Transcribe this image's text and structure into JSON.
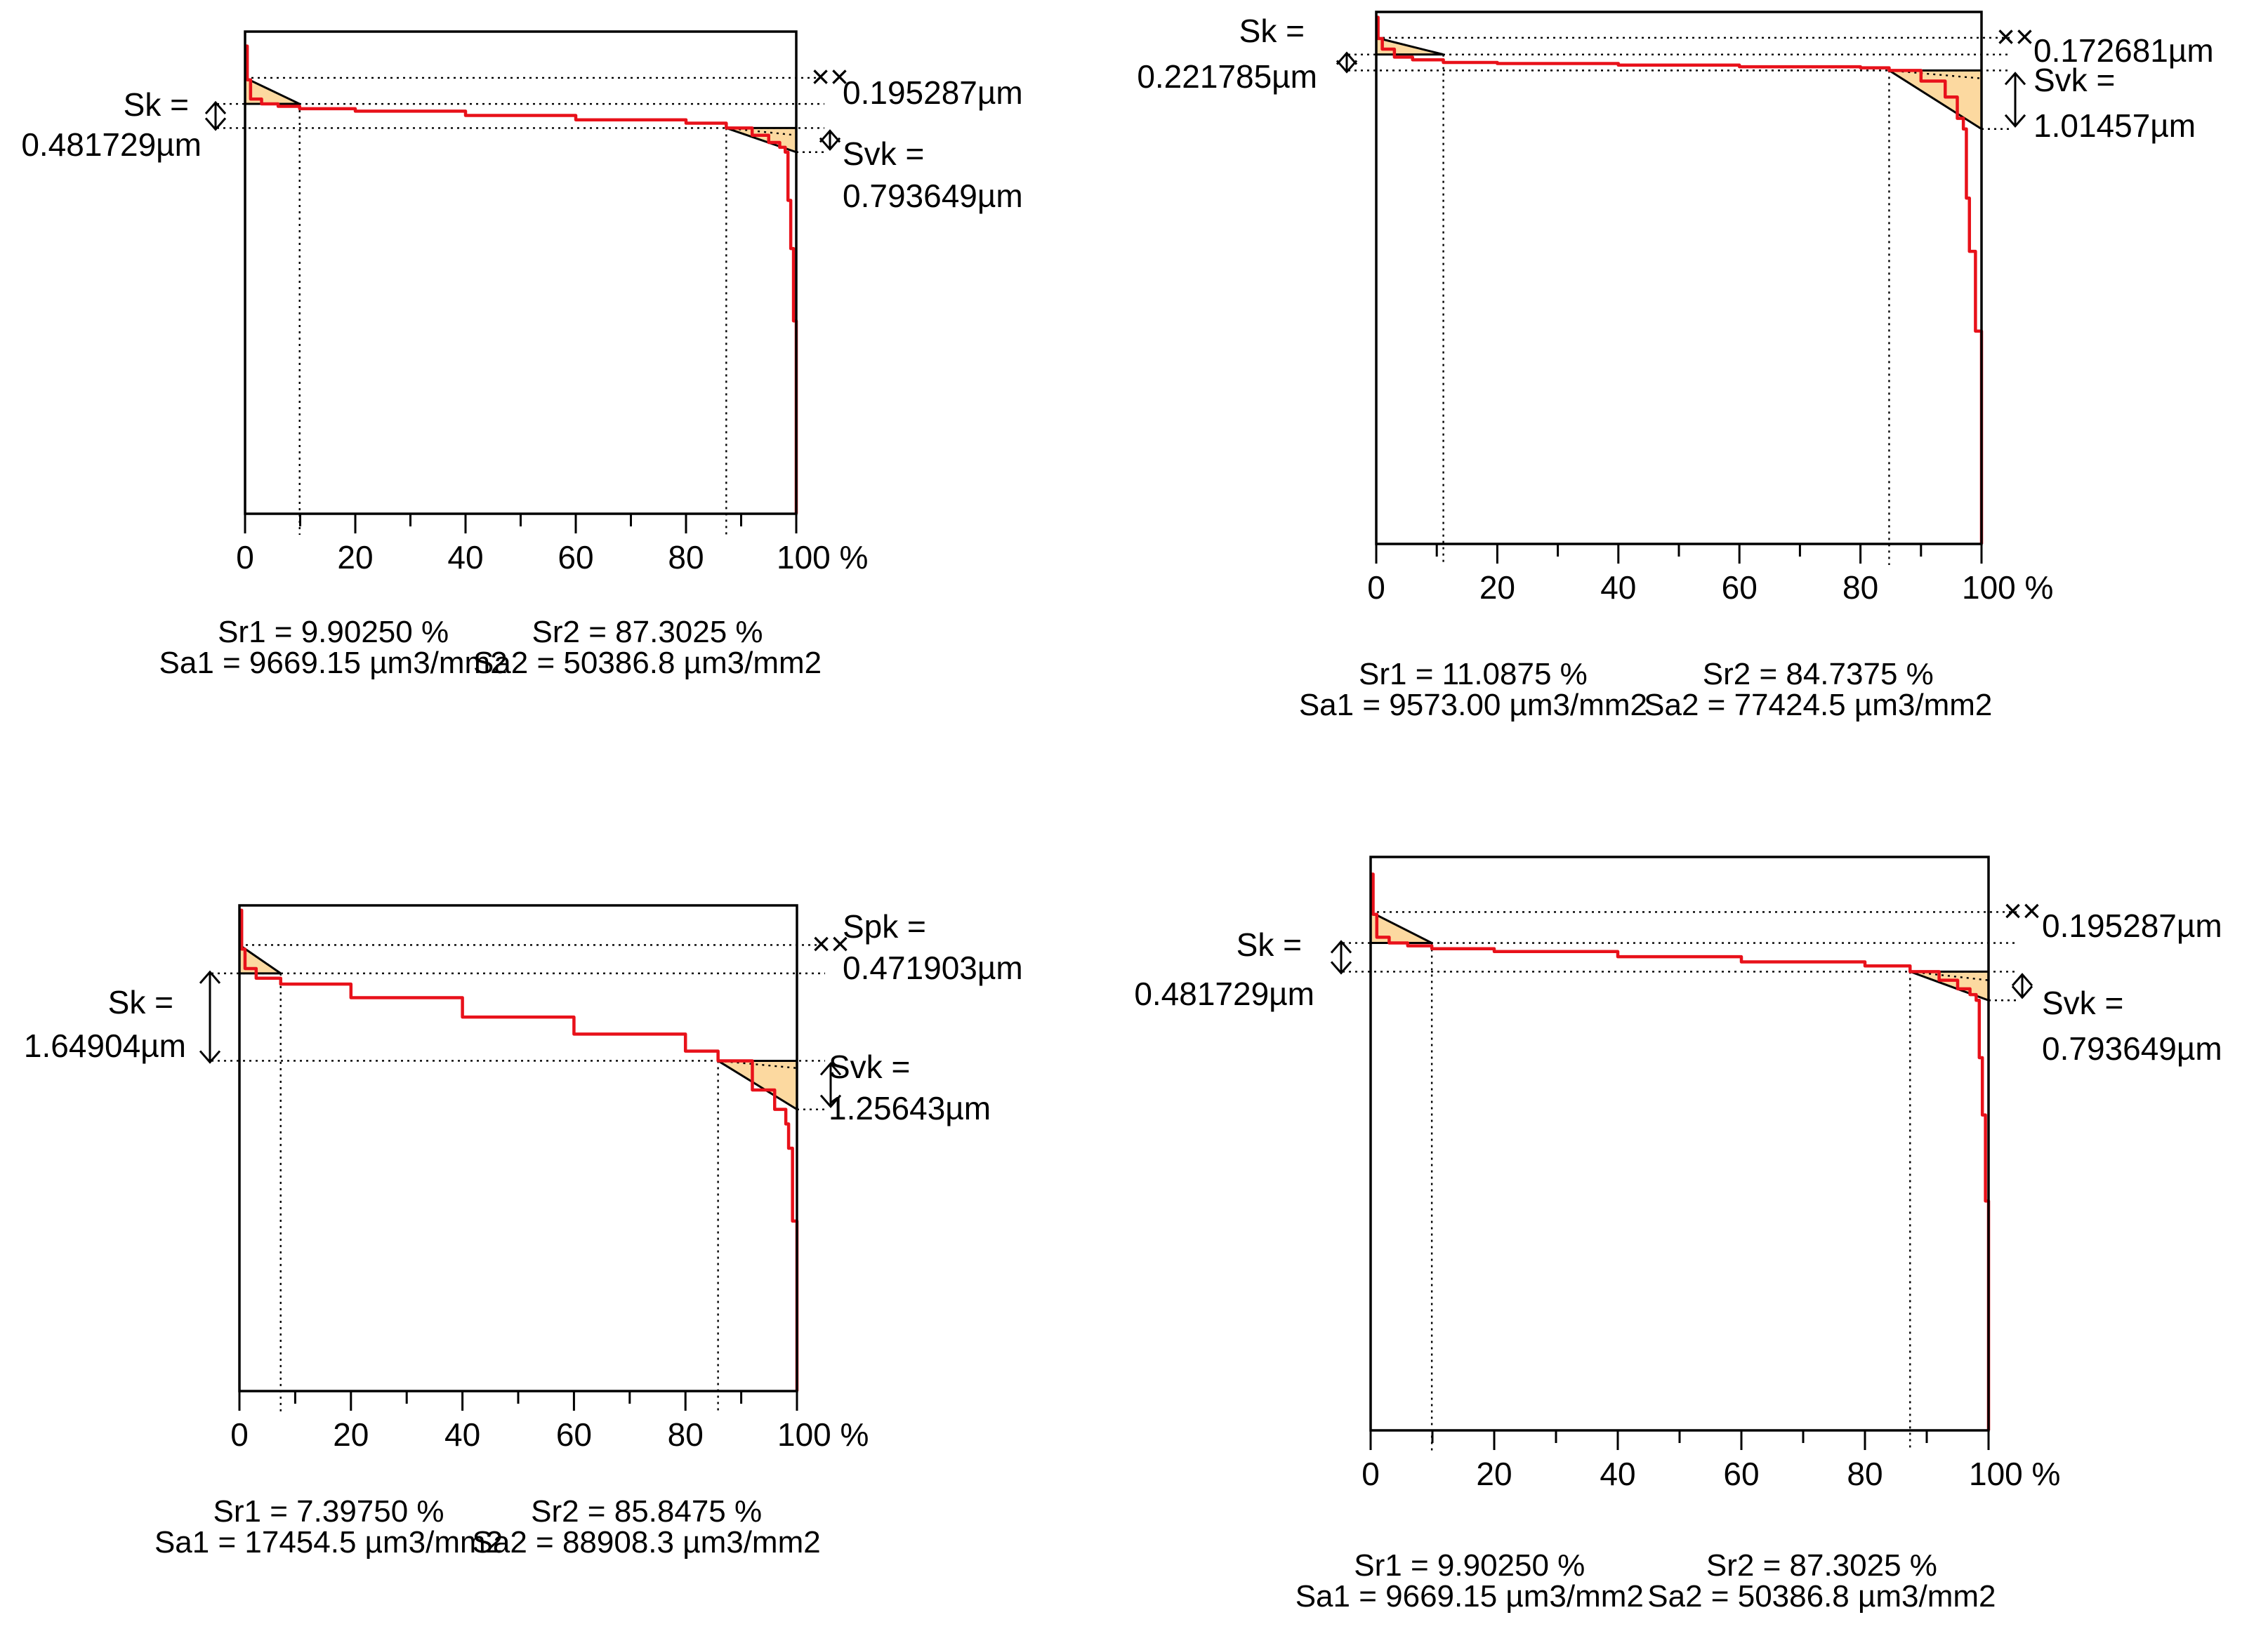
{
  "colors": {
    "curve": "#e8111a",
    "fill": "#fcd9a0",
    "frame": "#000000",
    "guide": "#000000"
  },
  "chart_data": [
    {
      "type": "line",
      "title": "",
      "xlabel": "%",
      "ylabel": "",
      "x_ticks": [
        "0",
        "20",
        "40",
        "60",
        "80",
        "100 %"
      ],
      "xlim": [
        0,
        100
      ],
      "ylim": [
        0,
        1
      ],
      "curve_x": [
        0,
        0.4,
        1,
        3,
        6,
        9.9025,
        20,
        40,
        60,
        80,
        87.3025,
        92,
        95,
        97,
        98,
        98.5,
        99,
        99.5,
        100
      ],
      "curve_y": [
        0.97,
        0.9,
        0.86,
        0.85,
        0.845,
        0.84,
        0.835,
        0.826,
        0.817,
        0.81,
        0.8,
        0.785,
        0.77,
        0.76,
        0.75,
        0.65,
        0.55,
        0.4,
        0.0
      ],
      "core_line": {
        "x": [
          0,
          87.3025
        ],
        "y": [
          0.85,
          0.8
        ]
      },
      "sr1_pct": 9.9025,
      "sr2_pct": 87.3025,
      "params": {
        "sk_label": "Sk =",
        "sk_value": "0.481729µm",
        "spk_label": "",
        "spk_value": "0.195287µm",
        "svk_label": "Svk =",
        "svk_value": "0.793649µm"
      },
      "stats": {
        "sr1": "Sr1 = 9.90250 %",
        "sa1": "Sa1 = 9669.15 µm3/mm2",
        "sr2": "Sr2 = 87.3025 %",
        "sa2": "Sa2 = 50386.8 µm3/mm2"
      }
    },
    {
      "type": "line",
      "title": "",
      "xlabel": "%",
      "ylabel": "",
      "x_ticks": [
        "0",
        "20",
        "40",
        "60",
        "80",
        "100 %"
      ],
      "xlim": [
        0,
        100
      ],
      "ylim": [
        0,
        1
      ],
      "curve_x": [
        0,
        0.3,
        1,
        3,
        6,
        11.0875,
        20,
        40,
        60,
        80,
        84.7375,
        90,
        94,
        96,
        97,
        97.5,
        98,
        99,
        100
      ],
      "curve_y": [
        0.99,
        0.95,
        0.93,
        0.915,
        0.91,
        0.905,
        0.903,
        0.9,
        0.897,
        0.895,
        0.89,
        0.87,
        0.84,
        0.8,
        0.78,
        0.65,
        0.55,
        0.4,
        0.0
      ],
      "core_line": {
        "x": [
          0,
          84.7375
        ],
        "y": [
          0.92,
          0.89
        ]
      },
      "sr1_pct": 11.0875,
      "sr2_pct": 84.7375,
      "params": {
        "sk_label": "Sk =",
        "sk_value": "0.221785µm",
        "spk_label": "",
        "spk_value": "0.172681µm",
        "svk_label": "Svk =",
        "svk_value": "1.01457µm"
      },
      "stats": {
        "sr1": "Sr1 = 11.0875 %",
        "sa1": "Sa1 = 9573.00 µm3/mm2",
        "sr2": "Sr2 = 84.7375 %",
        "sa2": "Sa2 = 77424.5 µm3/mm2"
      }
    },
    {
      "type": "line",
      "title": "",
      "xlabel": "%",
      "ylabel": "",
      "x_ticks": [
        "0",
        "20",
        "40",
        "60",
        "80",
        "100 %"
      ],
      "xlim": [
        0,
        100
      ],
      "ylim": [
        0,
        1
      ],
      "curve_x": [
        0,
        0.4,
        1,
        3,
        7.3975,
        20,
        40,
        60,
        80,
        85.8475,
        92,
        96,
        98,
        98.5,
        99.2,
        100
      ],
      "curve_y": [
        0.99,
        0.91,
        0.87,
        0.85,
        0.838,
        0.81,
        0.77,
        0.735,
        0.7,
        0.68,
        0.62,
        0.58,
        0.55,
        0.5,
        0.35,
        0.0
      ],
      "core_line": {
        "x": [
          0,
          85.8475
        ],
        "y": [
          0.86,
          0.68
        ]
      },
      "sr1_pct": 7.3975,
      "sr2_pct": 85.8475,
      "params": {
        "sk_label": "Sk =",
        "sk_value": "1.64904µm",
        "spk_label": "Spk =",
        "spk_value": "0.471903µm",
        "svk_label": "Svk =",
        "svk_value": "1.25643µm"
      },
      "stats": {
        "sr1": "Sr1 = 7.39750 %",
        "sa1": "Sa1 = 17454.5 µm3/mm2",
        "sr2": "Sr2 = 85.8475 %",
        "sa2": "Sa2 = 88908.3 µm3/mm2"
      }
    },
    {
      "type": "line",
      "title": "",
      "xlabel": "%",
      "ylabel": "",
      "x_ticks": [
        "0",
        "20",
        "40",
        "60",
        "80",
        "100 %"
      ],
      "xlim": [
        0,
        100
      ],
      "ylim": [
        0,
        1
      ],
      "curve_x": [
        0,
        0.4,
        1,
        3,
        6,
        9.9025,
        20,
        40,
        60,
        80,
        87.3025,
        92,
        95,
        97,
        98,
        98.5,
        99,
        99.5,
        100
      ],
      "curve_y": [
        0.97,
        0.9,
        0.86,
        0.85,
        0.845,
        0.84,
        0.835,
        0.826,
        0.817,
        0.81,
        0.8,
        0.785,
        0.77,
        0.76,
        0.75,
        0.65,
        0.55,
        0.4,
        0.0
      ],
      "core_line": {
        "x": [
          0,
          87.3025
        ],
        "y": [
          0.85,
          0.8
        ]
      },
      "sr1_pct": 9.9025,
      "sr2_pct": 87.3025,
      "params": {
        "sk_label": "Sk =",
        "sk_value": "0.481729µm",
        "spk_label": "",
        "spk_value": "0.195287µm",
        "svk_label": "Svk =",
        "svk_value": "0.793649µm"
      },
      "stats": {
        "sr1": "Sr1 = 9.90250 %",
        "sa1": "Sa1 = 9669.15 µm3/mm2",
        "sr2": "Sr2 = 87.3025 %",
        "sa2": "Sa2 = 50386.8 µm3/mm2"
      }
    }
  ]
}
